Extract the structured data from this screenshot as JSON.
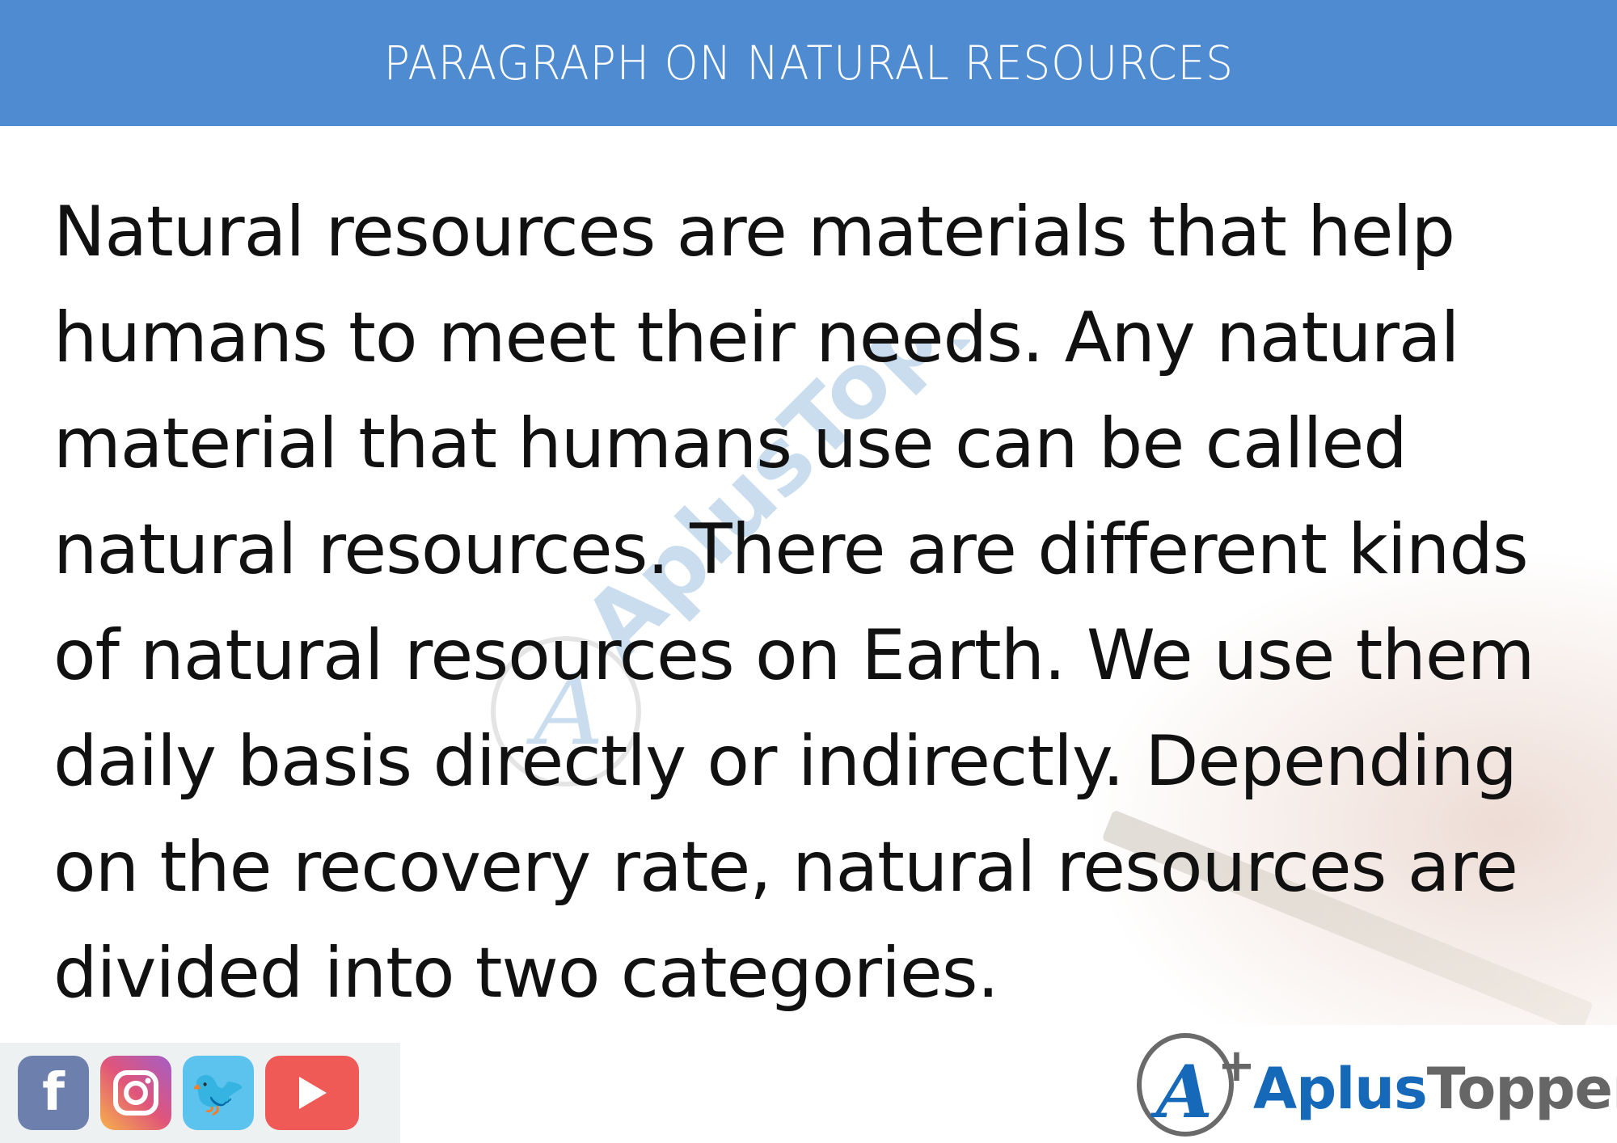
{
  "header": {
    "title": "PARAGRAPH ON NATURAL RESOURCES",
    "background": "#4f8bd0"
  },
  "paragraph": {
    "lines": [
      "Natural resources are materials that help",
      "humans to meet their needs. Any natural",
      "material that humans use can be called",
      "natural resources. There are different kinds",
      "of natural resources on Earth. We use them",
      "daily basis directly or indirectly. Depending",
      "on the recovery rate, natural resources are",
      "divided into two categories."
    ]
  },
  "watermark": {
    "text": "AplusTopper"
  },
  "social": {
    "icons": [
      "facebook-icon",
      "instagram-icon",
      "twitter-icon",
      "youtube-icon"
    ]
  },
  "logo": {
    "part1": "Aplus",
    "part2": "Topper",
    "brand_blue": "#1569b8",
    "brand_grey": "#666666"
  }
}
